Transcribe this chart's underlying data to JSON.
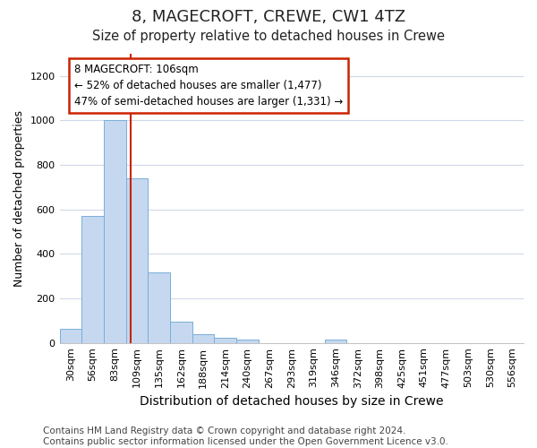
{
  "title": "8, MAGECROFT, CREWE, CW1 4TZ",
  "subtitle": "Size of property relative to detached houses in Crewe",
  "xlabel": "Distribution of detached houses by size in Crewe",
  "ylabel": "Number of detached properties",
  "categories": [
    "30sqm",
    "56sqm",
    "83sqm",
    "109sqm",
    "135sqm",
    "162sqm",
    "188sqm",
    "214sqm",
    "240sqm",
    "267sqm",
    "293sqm",
    "319sqm",
    "346sqm",
    "372sqm",
    "398sqm",
    "425sqm",
    "451sqm",
    "477sqm",
    "503sqm",
    "530sqm",
    "556sqm"
  ],
  "values": [
    63,
    570,
    1000,
    740,
    315,
    95,
    38,
    22,
    15,
    0,
    0,
    0,
    15,
    0,
    0,
    0,
    0,
    0,
    0,
    0,
    0
  ],
  "bar_color": "#c5d8f0",
  "bar_edgecolor": "#7aaed6",
  "vline_index": 2.73,
  "annotation_text": "8 MAGECROFT: 106sqm\n← 52% of detached houses are smaller (1,477)\n47% of semi-detached houses are larger (1,331) →",
  "annotation_box_color": "#ffffff",
  "annotation_box_edgecolor": "#cc2200",
  "vline_color": "#cc2200",
  "ylim": [
    0,
    1300
  ],
  "yticks": [
    0,
    200,
    400,
    600,
    800,
    1000,
    1200
  ],
  "bg_color": "#ffffff",
  "plot_bg_color": "#ffffff",
  "grid_color": "#d0d8e8",
  "footer_text": "Contains HM Land Registry data © Crown copyright and database right 2024.\nContains public sector information licensed under the Open Government Licence v3.0.",
  "title_fontsize": 13,
  "subtitle_fontsize": 10.5,
  "xlabel_fontsize": 10,
  "ylabel_fontsize": 9,
  "tick_fontsize": 8,
  "footer_fontsize": 7.5
}
